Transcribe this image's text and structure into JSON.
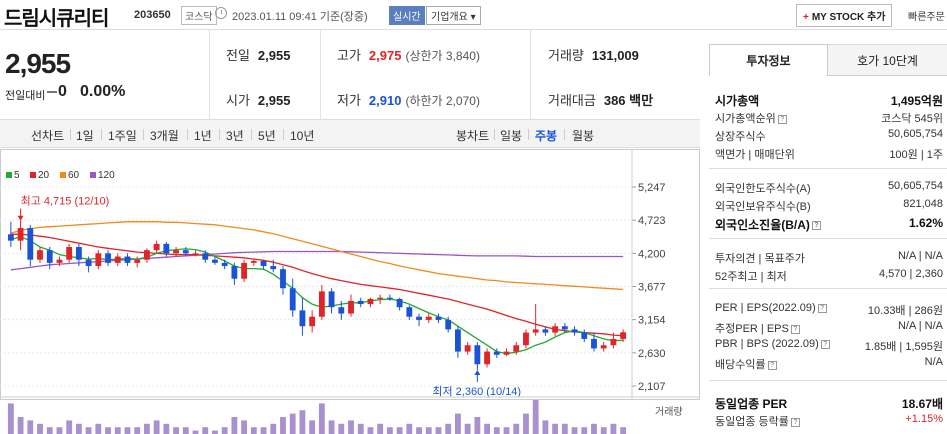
{
  "header": {
    "name": "드림시큐리티",
    "code": "203650",
    "market": "코스닥",
    "timestamp": "2023.01.11 09:41  기준(장중)",
    "realtime_label": "실시간",
    "company_label": "기업개요 ▾",
    "mystock_label": "MY STOCK 추가",
    "quick_order_label": "빠른주문"
  },
  "summary": {
    "price": "2,955",
    "change_label": "전일대비",
    "change_value": "0",
    "change_pct": "0.00%",
    "prev_close": {
      "label": "전일",
      "value": "2,955"
    },
    "open": {
      "label": "시가",
      "value": "2,955"
    },
    "high": {
      "label": "고가",
      "value": "2,975",
      "sub": "(상한가 3,840)"
    },
    "low": {
      "label": "저가",
      "value": "2,910",
      "sub": "(하한가 2,070)"
    },
    "volume": {
      "label": "거래량",
      "value": "131,009"
    },
    "amount": {
      "label": "거래대금",
      "value": "386 백만"
    }
  },
  "period_tabs": {
    "line_label": "선차트",
    "items": [
      "1일",
      "1주일",
      "3개월",
      "1년",
      "3년",
      "5년",
      "10년"
    ],
    "candle_label": "봉차트",
    "candle_items": [
      "일봉",
      "주봉",
      "월봉"
    ],
    "selected_candle": "주봉"
  },
  "chart_data": {
    "type": "candlestick",
    "legend": [
      {
        "name": "5",
        "color": "#22aa33"
      },
      {
        "name": "20",
        "color": "#e0252a"
      },
      {
        "name": "60",
        "color": "#f08a1e"
      },
      {
        "name": "120",
        "color": "#9a55c8"
      }
    ],
    "y_ticks": [
      "5,247",
      "4,723",
      "4,200",
      "3,677",
      "3,154",
      "2,630",
      "2,107"
    ],
    "ylim": [
      2107,
      5247
    ],
    "high_annotation": "최고 4,715 (12/10)",
    "low_annotation": "최저 2,360 (10/14)",
    "volume_label": "거래량",
    "up_color": "#e0252a",
    "down_color": "#1a53d6",
    "candles": [
      [
        4500,
        4700,
        4300,
        4400
      ],
      [
        4400,
        4715,
        4250,
        4600
      ],
      [
        4600,
        4650,
        4000,
        4100
      ],
      [
        4100,
        4300,
        4050,
        4250
      ],
      [
        4250,
        4300,
        3950,
        4050
      ],
      [
        4050,
        4150,
        4000,
        4100
      ],
      [
        4100,
        4350,
        4050,
        4300
      ],
      [
        4300,
        4350,
        4000,
        4100
      ],
      [
        4100,
        4150,
        3900,
        4000
      ],
      [
        4000,
        4250,
        3950,
        4200
      ],
      [
        4200,
        4250,
        4000,
        4050
      ],
      [
        4050,
        4200,
        4000,
        4150
      ],
      [
        4150,
        4200,
        4000,
        4050
      ],
      [
        4050,
        4150,
        3980,
        4100
      ],
      [
        4100,
        4280,
        4050,
        4250
      ],
      [
        4250,
        4400,
        4200,
        4350
      ],
      [
        4350,
        4380,
        4150,
        4200
      ],
      [
        4200,
        4300,
        4150,
        4250
      ],
      [
        4250,
        4300,
        4150,
        4200
      ],
      [
        4200,
        4250,
        4150,
        4200
      ],
      [
        4200,
        4250,
        4050,
        4100
      ],
      [
        4100,
        4150,
        4020,
        4050
      ],
      [
        4050,
        4100,
        3950,
        4000
      ],
      [
        4000,
        4050,
        3700,
        3800
      ],
      [
        3800,
        4100,
        3750,
        4050
      ],
      [
        4050,
        4100,
        4000,
        4080
      ],
      [
        4080,
        4100,
        3950,
        4000
      ],
      [
        4000,
        4100,
        3900,
        3950
      ],
      [
        3950,
        4000,
        3550,
        3650
      ],
      [
        3650,
        3800,
        3200,
        3300
      ],
      [
        3300,
        3500,
        2900,
        3050
      ],
      [
        3050,
        3300,
        2950,
        3200
      ],
      [
        3200,
        3700,
        3150,
        3600
      ],
      [
        3600,
        3650,
        3250,
        3350
      ],
      [
        3350,
        3450,
        3150,
        3250
      ],
      [
        3250,
        3550,
        3200,
        3450
      ],
      [
        3450,
        3500,
        3350,
        3400
      ],
      [
        3400,
        3500,
        3350,
        3480
      ],
      [
        3480,
        3550,
        3400,
        3500
      ],
      [
        3500,
        3550,
        3450,
        3480
      ],
      [
        3480,
        3500,
        3300,
        3350
      ],
      [
        3350,
        3380,
        3150,
        3200
      ],
      [
        3200,
        3250,
        3050,
        3150
      ],
      [
        3150,
        3250,
        3100,
        3200
      ],
      [
        3200,
        3250,
        3100,
        3150
      ],
      [
        3150,
        3200,
        2950,
        3000
      ],
      [
        3000,
        3050,
        2550,
        2650
      ],
      [
        2650,
        2800,
        2600,
        2750
      ],
      [
        2750,
        2800,
        2360,
        2450
      ],
      [
        2450,
        2700,
        2400,
        2650
      ],
      [
        2650,
        2700,
        2550,
        2600
      ],
      [
        2600,
        2700,
        2580,
        2650
      ],
      [
        2650,
        2800,
        2600,
        2750
      ],
      [
        2750,
        3000,
        2700,
        2950
      ],
      [
        2950,
        3400,
        2900,
        3000
      ],
      [
        3000,
        3050,
        2900,
        2950
      ],
      [
        2950,
        3100,
        2900,
        3050
      ],
      [
        3050,
        3100,
        2950,
        3000
      ],
      [
        3000,
        3050,
        2900,
        2950
      ],
      [
        2950,
        3000,
        2800,
        2850
      ],
      [
        2850,
        2950,
        2650,
        2700
      ],
      [
        2700,
        2800,
        2650,
        2750
      ],
      [
        2750,
        2950,
        2700,
        2850
      ],
      [
        2850,
        3000,
        2800,
        2955
      ]
    ],
    "ma5": [
      4420,
      4460,
      4400,
      4300,
      4250,
      4180,
      4150,
      4130,
      4110,
      4120,
      4100,
      4110,
      4120,
      4110,
      4140,
      4200,
      4240,
      4260,
      4270,
      4260,
      4220,
      4150,
      4080,
      4000,
      3960,
      3960,
      3950,
      3870,
      3760,
      3650,
      3500,
      3400,
      3350,
      3370,
      3400,
      3420,
      3420,
      3450,
      3470,
      3480,
      3450,
      3400,
      3330,
      3260,
      3200,
      3150,
      3050,
      2950,
      2850,
      2750,
      2650,
      2620,
      2640,
      2680,
      2750,
      2800,
      2880,
      2950,
      2980,
      2950,
      2900,
      2850,
      2820,
      2830
    ],
    "ma20": [
      4500,
      4500,
      4490,
      4470,
      4450,
      4420,
      4390,
      4360,
      4330,
      4300,
      4280,
      4260,
      4240,
      4220,
      4210,
      4200,
      4190,
      4180,
      4180,
      4180,
      4170,
      4160,
      4150,
      4140,
      4130,
      4110,
      4090,
      4060,
      4020,
      3980,
      3930,
      3880,
      3840,
      3800,
      3770,
      3740,
      3710,
      3690,
      3670,
      3650,
      3630,
      3600,
      3570,
      3540,
      3510,
      3480,
      3440,
      3400,
      3360,
      3320,
      3270,
      3220,
      3170,
      3130,
      3080,
      3040,
      3000,
      2980,
      2960,
      2950,
      2940,
      2930,
      2910,
      2900
    ],
    "ma60": [
      4520,
      4560,
      4590,
      4610,
      4620,
      4630,
      4640,
      4650,
      4660,
      4670,
      4680,
      4690,
      4700,
      4700,
      4700,
      4700,
      4690,
      4690,
      4680,
      4670,
      4660,
      4650,
      4630,
      4610,
      4590,
      4570,
      4540,
      4510,
      4470,
      4430,
      4390,
      4350,
      4310,
      4270,
      4230,
      4190,
      4150,
      4110,
      4070,
      4040,
      4000,
      3970,
      3940,
      3910,
      3880,
      3860,
      3840,
      3820,
      3800,
      3780,
      3770,
      3750,
      3740,
      3730,
      3720,
      3710,
      3700,
      3690,
      3680,
      3670,
      3660,
      3650,
      3640,
      3630
    ],
    "ma120": [
      3940,
      3960,
      3980,
      4000,
      4020,
      4030,
      4040,
      4050,
      4060,
      4070,
      4080,
      4090,
      4100,
      4110,
      4120,
      4130,
      4140,
      4150,
      4160,
      4170,
      4180,
      4190,
      4200,
      4210,
      4215,
      4220,
      4225,
      4230,
      4230,
      4230,
      4230,
      4230,
      4230,
      4230,
      4230,
      4225,
      4220,
      4215,
      4210,
      4205,
      4200,
      4195,
      4190,
      4185,
      4180,
      4175,
      4170,
      4165,
      4160,
      4160,
      4160,
      4160,
      4160,
      4155,
      4150,
      4150,
      4150,
      4150,
      4150,
      4150,
      4150,
      4150,
      4150,
      4150
    ],
    "volume": [
      0.9,
      0.5,
      0.4,
      0.3,
      0.2,
      0.2,
      0.4,
      0.3,
      0.2,
      0.3,
      0.2,
      0.2,
      0.2,
      0.2,
      0.3,
      0.4,
      0.3,
      0.2,
      0.2,
      0.1,
      0.2,
      0.1,
      0.2,
      0.5,
      0.4,
      0.2,
      0.2,
      0.3,
      0.5,
      0.6,
      0.7,
      0.4,
      0.9,
      0.4,
      0.3,
      0.4,
      0.3,
      0.2,
      0.3,
      0.2,
      0.2,
      0.3,
      0.2,
      0.2,
      0.2,
      0.3,
      0.6,
      0.3,
      0.5,
      0.3,
      0.2,
      0.2,
      0.3,
      0.6,
      1.0,
      0.4,
      0.3,
      0.3,
      0.2,
      0.2,
      0.3,
      0.2,
      0.3,
      0.2
    ]
  },
  "side_panel": {
    "tab_invest": "투자정보",
    "tab_orderbook": "호가 10단계",
    "rows": [
      {
        "k": "시가총액",
        "v": "1,495억원",
        "big": true
      },
      {
        "k": "시가총액순위",
        "v": "코스닥  545위"
      },
      {
        "k": "상장주식수",
        "v": "50,605,754"
      },
      {
        "k": "액면가 | 매매단위",
        "v": "100원 | 1주"
      },
      {
        "k": "외국인한도주식수(A)",
        "v": "50,605,754"
      },
      {
        "k": "외국인보유주식수(B)",
        "v": "821,048"
      },
      {
        "k": "외국인소진율(B/A)",
        "v": "1.62%",
        "big": true
      },
      {
        "k": "투자의견 | 목표주가",
        "v": "N/A | N/A"
      },
      {
        "k": "52주최고 | 최저",
        "v": "4,570 | 2,360"
      },
      {
        "k": "PER | EPS(2022.09)",
        "v": "10.33배 | 286원"
      },
      {
        "k": "추정PER | EPS",
        "v": "N/A | N/A"
      },
      {
        "k": "PBR | BPS (2022.09)",
        "v": "1.85배 | 1,595원"
      },
      {
        "k": "배당수익률",
        "v": "N/A"
      },
      {
        "k": "동일업종 PER",
        "v": "18.67배",
        "big": true
      },
      {
        "k": "동일업종 등락률",
        "v": "+1.15%"
      }
    ]
  }
}
